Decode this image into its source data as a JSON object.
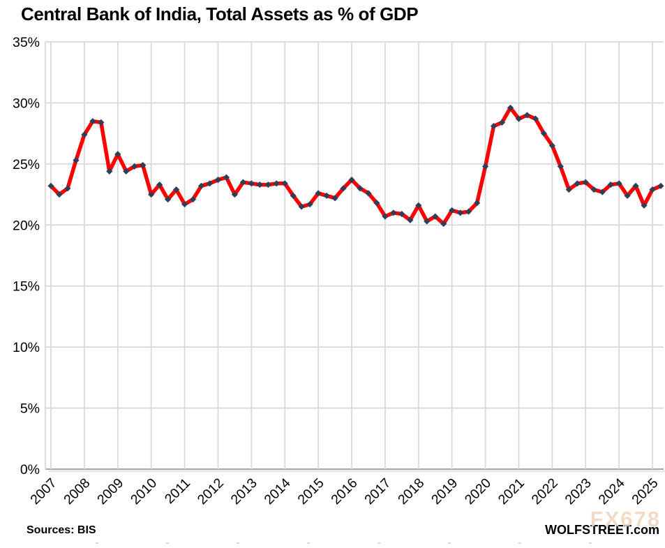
{
  "header": {
    "title": "Central Bank of India, Total Assets as % of GDP"
  },
  "footer": {
    "sources": "Sources: BIS",
    "brand": "WOLFSTREET.com",
    "watermark": "FX678"
  },
  "chart_data": {
    "type": "line",
    "title": "Central Bank of India, Total Assets as % of GDP",
    "frequency": "quarterly",
    "x_start": "2007 Q1",
    "x_end": "2025 Q2",
    "year_labels": [
      "2007",
      "2008",
      "2009",
      "2010",
      "2011",
      "2012",
      "2013",
      "2014",
      "2015",
      "2016",
      "2017",
      "2018",
      "2019",
      "2020",
      "2021",
      "2022",
      "2023",
      "2024",
      "2025"
    ],
    "ytick_labels": [
      "0%",
      "5%",
      "10%",
      "15%",
      "20%",
      "25%",
      "30%",
      "35%"
    ],
    "ytick_values": [
      0,
      5,
      10,
      15,
      20,
      25,
      30,
      35
    ],
    "ylim": [
      0,
      35
    ],
    "grid": "on",
    "legend": "none",
    "series": [
      {
        "name": "Total assets as % of GDP",
        "values": [
          23.2,
          22.5,
          23.0,
          25.3,
          27.4,
          28.5,
          28.4,
          24.4,
          25.8,
          24.4,
          24.8,
          24.9,
          22.5,
          23.3,
          22.1,
          22.9,
          21.7,
          22.1,
          23.2,
          23.4,
          23.7,
          23.9,
          22.5,
          23.5,
          23.4,
          23.3,
          23.3,
          23.4,
          23.4,
          22.4,
          21.5,
          21.7,
          22.6,
          22.4,
          22.2,
          23.0,
          23.7,
          23.0,
          22.6,
          21.8,
          20.7,
          21.0,
          20.9,
          20.4,
          21.6,
          20.3,
          20.7,
          20.1,
          21.2,
          21.0,
          21.1,
          21.8,
          24.8,
          28.1,
          28.4,
          29.6,
          28.7,
          29.0,
          28.7,
          27.5,
          26.5,
          24.8,
          22.9,
          23.4,
          23.5,
          22.9,
          22.7,
          23.3,
          23.4,
          22.4,
          23.2,
          21.6,
          22.9,
          23.2
        ]
      }
    ],
    "colors": {
      "line": "#FF0000",
      "marker": "#2E4057",
      "grid": "#D9D9D9",
      "axis": "#A8A8A8",
      "text": "#000000",
      "watermark": "#F2D9C5"
    }
  }
}
